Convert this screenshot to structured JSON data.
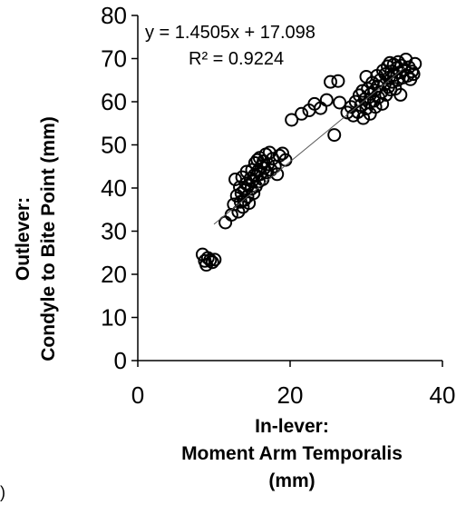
{
  "chart_data": {
    "type": "scatter",
    "xlabel_lines": [
      "In-lever:",
      "Moment Arm Temporalis",
      "(mm)"
    ],
    "ylabel_lines": [
      "Outlever:",
      "Condyle to Bite Point (mm)"
    ],
    "xlim": [
      0,
      40
    ],
    "ylim": [
      0,
      80
    ],
    "x_ticks": [
      0,
      20,
      40
    ],
    "y_ticks": [
      0,
      10,
      20,
      30,
      40,
      50,
      60,
      70,
      80
    ],
    "grid": false,
    "marker": "open-circle",
    "trendline": {
      "slope": 1.4505,
      "intercept": 17.098,
      "x_range": [
        10,
        35
      ],
      "color": "#555555"
    },
    "annotations": {
      "equation": "y = 1.4505x + 17.098",
      "r_squared": "R² = 0.9224"
    },
    "points": [
      [
        8.5,
        24.6
      ],
      [
        8.8,
        23.1
      ],
      [
        9.0,
        22.2
      ],
      [
        9.2,
        23.8
      ],
      [
        9.5,
        23.3
      ],
      [
        9.8,
        22.8
      ],
      [
        10.1,
        23.4
      ],
      [
        11.5,
        32.0
      ],
      [
        12.3,
        33.8
      ],
      [
        12.6,
        36.2
      ],
      [
        12.8,
        42.0
      ],
      [
        13.0,
        38.2
      ],
      [
        13.2,
        34.5
      ],
      [
        13.4,
        40.2
      ],
      [
        13.5,
        36.8
      ],
      [
        13.6,
        38.8
      ],
      [
        13.7,
        42.5
      ],
      [
        13.8,
        35.6
      ],
      [
        14.0,
        39.5
      ],
      [
        14.0,
        37.2
      ],
      [
        14.2,
        41.0
      ],
      [
        14.3,
        43.8
      ],
      [
        14.4,
        38.0
      ],
      [
        14.5,
        40.6
      ],
      [
        14.6,
        36.5
      ],
      [
        14.8,
        42.2
      ],
      [
        14.9,
        39.8
      ],
      [
        15.0,
        44.2
      ],
      [
        15.1,
        41.8
      ],
      [
        15.2,
        38.8
      ],
      [
        15.3,
        43.0
      ],
      [
        15.4,
        45.8
      ],
      [
        15.5,
        40.4
      ],
      [
        15.6,
        42.8
      ],
      [
        15.7,
        46.5
      ],
      [
        15.8,
        44.0
      ],
      [
        15.9,
        41.5
      ],
      [
        16.0,
        47.0
      ],
      [
        16.1,
        43.2
      ],
      [
        16.2,
        45.0
      ],
      [
        16.4,
        42.0
      ],
      [
        16.5,
        46.2
      ],
      [
        16.6,
        44.6
      ],
      [
        16.8,
        47.8
      ],
      [
        17.0,
        43.6
      ],
      [
        17.1,
        45.5
      ],
      [
        17.3,
        48.2
      ],
      [
        17.5,
        44.2
      ],
      [
        17.7,
        46.8
      ],
      [
        18.0,
        45.0
      ],
      [
        18.3,
        43.2
      ],
      [
        18.6,
        47.5
      ],
      [
        19.0,
        48.0
      ],
      [
        19.4,
        46.5
      ],
      [
        20.2,
        55.8
      ],
      [
        21.5,
        57.2
      ],
      [
        22.5,
        58.0
      ],
      [
        23.2,
        59.5
      ],
      [
        24.0,
        58.5
      ],
      [
        24.8,
        60.4
      ],
      [
        25.3,
        64.6
      ],
      [
        25.8,
        52.3
      ],
      [
        26.3,
        64.8
      ],
      [
        26.5,
        59.8
      ],
      [
        27.5,
        57.5
      ],
      [
        28.0,
        58.8
      ],
      [
        28.3,
        56.8
      ],
      [
        28.6,
        60.0
      ],
      [
        28.9,
        57.6
      ],
      [
        29.1,
        61.5
      ],
      [
        29.3,
        59.2
      ],
      [
        29.5,
        62.5
      ],
      [
        29.6,
        56.2
      ],
      [
        29.8,
        60.6
      ],
      [
        30.0,
        58.4
      ],
      [
        30.0,
        65.8
      ],
      [
        30.2,
        63.0
      ],
      [
        30.4,
        59.8
      ],
      [
        30.5,
        57.2
      ],
      [
        30.6,
        61.8
      ],
      [
        30.8,
        64.4
      ],
      [
        31.0,
        60.2
      ],
      [
        31.1,
        62.6
      ],
      [
        31.2,
        58.8
      ],
      [
        31.4,
        66.0
      ],
      [
        31.5,
        63.6
      ],
      [
        31.6,
        61.0
      ],
      [
        31.8,
        65.0
      ],
      [
        32.0,
        62.2
      ],
      [
        32.1,
        59.5
      ],
      [
        32.2,
        67.2
      ],
      [
        32.4,
        64.0
      ],
      [
        32.5,
        66.4
      ],
      [
        32.6,
        61.6
      ],
      [
        32.8,
        68.2
      ],
      [
        32.9,
        63.4
      ],
      [
        33.0,
        65.6
      ],
      [
        33.1,
        69.0
      ],
      [
        33.2,
        62.8
      ],
      [
        33.3,
        67.0
      ],
      [
        33.4,
        64.6
      ],
      [
        33.6,
        68.6
      ],
      [
        33.7,
        66.2
      ],
      [
        33.8,
        63.0
      ],
      [
        34.0,
        67.8
      ],
      [
        34.1,
        65.0
      ],
      [
        34.2,
        69.2
      ],
      [
        34.4,
        66.8
      ],
      [
        34.5,
        61.6
      ],
      [
        34.6,
        68.4
      ],
      [
        34.8,
        65.6
      ],
      [
        35.0,
        67.4
      ],
      [
        35.2,
        69.8
      ],
      [
        35.4,
        66.0
      ],
      [
        35.6,
        68.0
      ],
      [
        35.8,
        65.2
      ],
      [
        36.0,
        67.0
      ],
      [
        36.2,
        66.4
      ],
      [
        36.4,
        68.8
      ]
    ]
  },
  "stray_text": ")"
}
